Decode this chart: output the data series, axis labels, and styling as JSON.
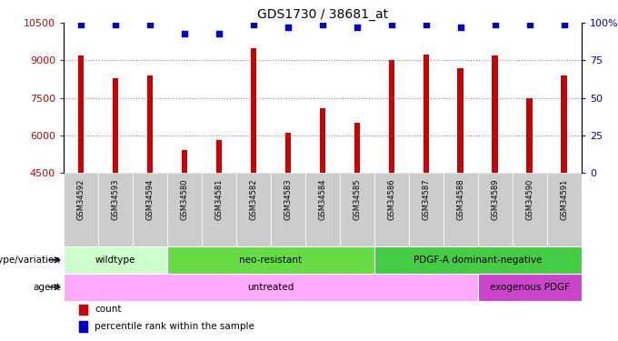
{
  "title": "GDS1730 / 38681_at",
  "samples": [
    "GSM34592",
    "GSM34593",
    "GSM34594",
    "GSM34580",
    "GSM34581",
    "GSM34582",
    "GSM34583",
    "GSM34584",
    "GSM34585",
    "GSM34586",
    "GSM34587",
    "GSM34588",
    "GSM34589",
    "GSM34590",
    "GSM34591"
  ],
  "counts": [
    9200,
    8300,
    8400,
    5400,
    5800,
    9500,
    6100,
    7100,
    6500,
    9000,
    9250,
    8700,
    9200,
    7500,
    8400
  ],
  "percentile_ranks": [
    99,
    99,
    99,
    93,
    93,
    99,
    97,
    99,
    97,
    99,
    99,
    97,
    99,
    99,
    99
  ],
  "ylim_left": [
    4500,
    10500
  ],
  "ylim_right": [
    0,
    100
  ],
  "yticks_left": [
    4500,
    6000,
    7500,
    9000,
    10500
  ],
  "yticks_right": [
    0,
    25,
    50,
    75,
    100
  ],
  "bar_color": "#cc0000",
  "dot_color": "#0000cc",
  "bar_bottom": 4500,
  "genotype_groups": [
    {
      "label": "wildtype",
      "start": 0,
      "end": 3,
      "color": "#ccffcc"
    },
    {
      "label": "neo-resistant",
      "start": 3,
      "end": 9,
      "color": "#66dd44"
    },
    {
      "label": "PDGF-A dominant-negative",
      "start": 9,
      "end": 15,
      "color": "#44cc44"
    }
  ],
  "agent_groups": [
    {
      "label": "untreated",
      "start": 0,
      "end": 12,
      "color": "#ffaaff"
    },
    {
      "label": "exogenous PDGF",
      "start": 12,
      "end": 15,
      "color": "#cc44cc"
    }
  ],
  "legend_count_color": "#cc0000",
  "legend_dot_color": "#0000cc",
  "grid_color": "#888888",
  "tick_label_color_left": "#cc0000",
  "tick_label_color_right": "#0000cc",
  "label_left_text": [
    "genotype/variation",
    "agent"
  ],
  "figure_bg": "#ffffff",
  "xtick_bg": "#cccccc"
}
